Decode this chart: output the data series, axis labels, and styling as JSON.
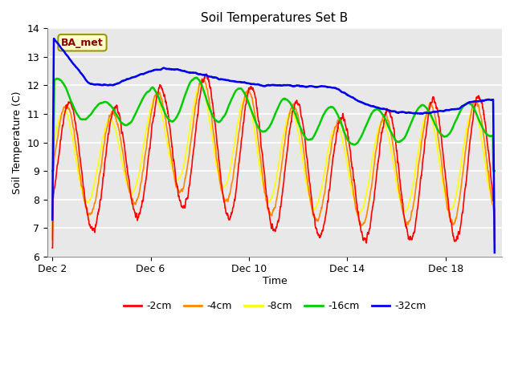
{
  "title": "Soil Temperatures Set B",
  "xlabel": "Time",
  "ylabel": "Soil Temperature (C)",
  "ylim": [
    6.0,
    14.0
  ],
  "yticks": [
    6.0,
    7.0,
    8.0,
    9.0,
    10.0,
    11.0,
    12.0,
    13.0,
    14.0
  ],
  "xtick_positions": [
    0,
    4,
    8,
    12,
    16
  ],
  "xtick_labels": [
    "Dec 2",
    "Dec 6",
    "Dec 10",
    "Dec 14",
    "Dec 18"
  ],
  "bg_color": "#e8e8e8",
  "legend_label": "BA_met",
  "line_colors": {
    "-2cm": "#ff0000",
    "-4cm": "#ff8800",
    "-8cm": "#ffff00",
    "-16cm": "#00cc00",
    "-32cm": "#0000ee"
  },
  "line_widths": {
    "-2cm": 1.2,
    "-4cm": 1.2,
    "-8cm": 1.2,
    "-16cm": 1.8,
    "-32cm": 1.8
  },
  "n_days": 18,
  "n_points": 2160
}
